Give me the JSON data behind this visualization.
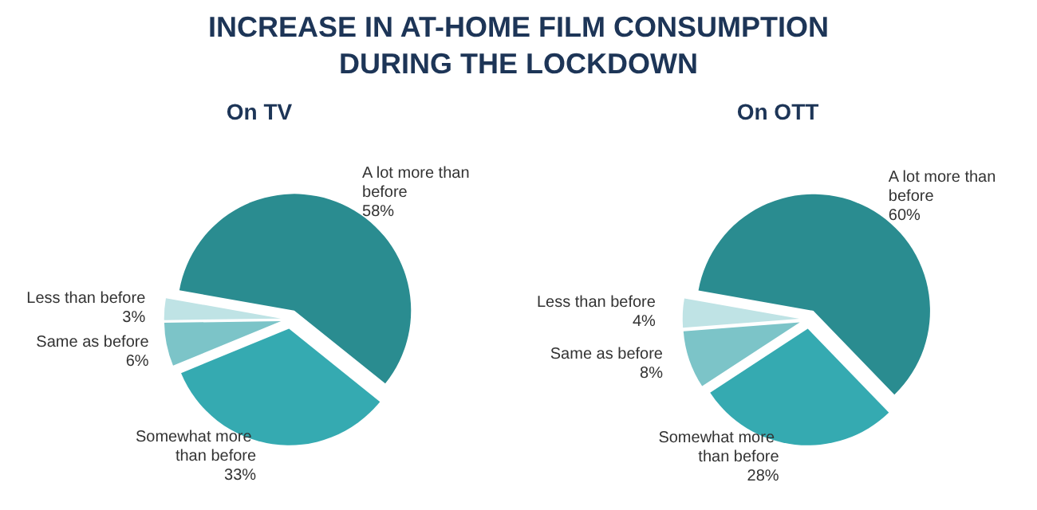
{
  "chart_data": [
    {
      "type": "pie",
      "title": "INCREASE IN AT-HOME FILM CONSUMPTION DURING THE LOCKDOWN",
      "subtitle": "On TV",
      "categories": [
        "A lot more than before",
        "Somewhat more than before",
        "Same as before",
        "Less than before"
      ],
      "values": [
        58,
        33,
        6,
        3
      ],
      "value_labels": [
        "58%",
        "33%",
        "6%",
        "3%"
      ],
      "colors": [
        "#2a8c90",
        "#35aab1",
        "#7cc4c8",
        "#bfe3e5"
      ],
      "legend": false
    },
    {
      "type": "pie",
      "subtitle": "On OTT",
      "categories": [
        "A lot more than before",
        "Somewhat more than before",
        "Same as before",
        "Less than before"
      ],
      "values": [
        60,
        28,
        8,
        4
      ],
      "value_labels": [
        "60%",
        "28%",
        "8%",
        "4%"
      ],
      "colors": [
        "#2a8c90",
        "#35aab1",
        "#7cc4c8",
        "#bfe3e5"
      ],
      "legend": false
    }
  ]
}
